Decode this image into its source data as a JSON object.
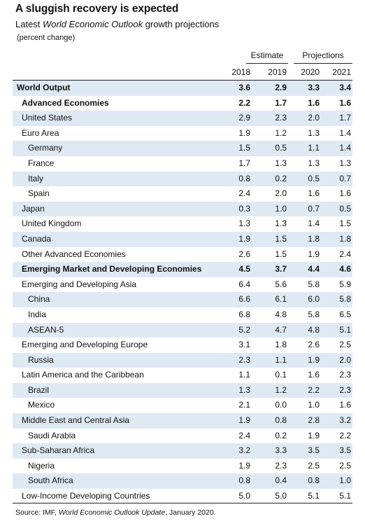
{
  "title": "A sluggish recovery is expected",
  "subtitle_pre": "Latest ",
  "subtitle_em": "World Economic Outlook",
  "subtitle_post": " growth projections",
  "unit": "(percent change)",
  "header_groups": {
    "estimate": "Estimate",
    "projections": "Projections"
  },
  "years": [
    "2018",
    "2019",
    "2020",
    "2021"
  ],
  "rows": [
    {
      "label": "World Output",
      "level": 0,
      "bold": true,
      "shade": true,
      "values": [
        "3.6",
        "2.9",
        "3.3",
        "3.4"
      ]
    },
    {
      "label": "Advanced Economies",
      "level": 1,
      "bold": true,
      "shade": false,
      "values": [
        "2.2",
        "1.7",
        "1.6",
        "1.6"
      ]
    },
    {
      "label": "United States",
      "level": 1,
      "bold": false,
      "shade": true,
      "values": [
        "2.9",
        "2.3",
        "2.0",
        "1.7"
      ]
    },
    {
      "label": "Euro Area",
      "level": 1,
      "bold": false,
      "shade": false,
      "values": [
        "1.9",
        "1.2",
        "1.3",
        "1.4"
      ]
    },
    {
      "label": "Germany",
      "level": 2,
      "bold": false,
      "shade": true,
      "values": [
        "1.5",
        "0.5",
        "1.1",
        "1.4"
      ]
    },
    {
      "label": "France",
      "level": 2,
      "bold": false,
      "shade": false,
      "values": [
        "1.7",
        "1.3",
        "1.3",
        "1.3"
      ]
    },
    {
      "label": "Italy",
      "level": 2,
      "bold": false,
      "shade": true,
      "values": [
        "0.8",
        "0.2",
        "0.5",
        "0.7"
      ]
    },
    {
      "label": "Spain",
      "level": 2,
      "bold": false,
      "shade": false,
      "values": [
        "2.4",
        "2.0",
        "1.6",
        "1.6"
      ]
    },
    {
      "label": "Japan",
      "level": 1,
      "bold": false,
      "shade": true,
      "values": [
        "0.3",
        "1.0",
        "0.7",
        "0.5"
      ]
    },
    {
      "label": "United Kingdom",
      "level": 1,
      "bold": false,
      "shade": false,
      "values": [
        "1.3",
        "1.3",
        "1.4",
        "1.5"
      ]
    },
    {
      "label": "Canada",
      "level": 1,
      "bold": false,
      "shade": true,
      "values": [
        "1.9",
        "1.5",
        "1.8",
        "1.8"
      ]
    },
    {
      "label": "Other Advanced Economies",
      "level": 1,
      "bold": false,
      "shade": false,
      "values": [
        "2.6",
        "1.5",
        "1.9",
        "2.4"
      ]
    },
    {
      "label": "Emerging Market and Developing Economies",
      "level": 1,
      "bold": true,
      "shade": true,
      "values": [
        "4.5",
        "3.7",
        "4.4",
        "4.6"
      ]
    },
    {
      "label": "Emerging and Developing Asia",
      "level": 1,
      "bold": false,
      "shade": false,
      "values": [
        "6.4",
        "5.6",
        "5.8",
        "5.9"
      ]
    },
    {
      "label": "China",
      "level": 2,
      "bold": false,
      "shade": true,
      "values": [
        "6.6",
        "6.1",
        "6.0",
        "5.8"
      ]
    },
    {
      "label": "India",
      "level": 2,
      "bold": false,
      "shade": false,
      "values": [
        "6.8",
        "4.8",
        "5.8",
        "6.5"
      ]
    },
    {
      "label": "ASEAN-5",
      "level": 2,
      "bold": false,
      "shade": true,
      "values": [
        "5.2",
        "4.7",
        "4.8",
        "5.1"
      ]
    },
    {
      "label": "Emerging and Developing Europe",
      "level": 1,
      "bold": false,
      "shade": false,
      "values": [
        "3.1",
        "1.8",
        "2.6",
        "2.5"
      ]
    },
    {
      "label": "Russia",
      "level": 2,
      "bold": false,
      "shade": true,
      "values": [
        "2.3",
        "1.1",
        "1.9",
        "2.0"
      ]
    },
    {
      "label": "Latin America and the Caribbean",
      "level": 1,
      "bold": false,
      "shade": false,
      "values": [
        "1.1",
        "0.1",
        "1.6",
        "2.3"
      ]
    },
    {
      "label": "Brazil",
      "level": 2,
      "bold": false,
      "shade": true,
      "values": [
        "1.3",
        "1.2",
        "2.2",
        "2.3"
      ]
    },
    {
      "label": "Mexico",
      "level": 2,
      "bold": false,
      "shade": false,
      "values": [
        "2.1",
        "0.0",
        "1.0",
        "1.6"
      ]
    },
    {
      "label": "Middle East and Central Asia",
      "level": 1,
      "bold": false,
      "shade": true,
      "values": [
        "1.9",
        "0.8",
        "2.8",
        "3.2"
      ]
    },
    {
      "label": "Saudi Arabia",
      "level": 2,
      "bold": false,
      "shade": false,
      "values": [
        "2.4",
        "0.2",
        "1.9",
        "2.2"
      ]
    },
    {
      "label": "Sub-Saharan Africa",
      "level": 1,
      "bold": false,
      "shade": true,
      "values": [
        "3.2",
        "3.3",
        "3.5",
        "3.5"
      ]
    },
    {
      "label": "Nigeria",
      "level": 2,
      "bold": false,
      "shade": false,
      "values": [
        "1.9",
        "2.3",
        "2.5",
        "2.5"
      ]
    },
    {
      "label": "South Africa",
      "level": 2,
      "bold": false,
      "shade": true,
      "values": [
        "0.8",
        "0.4",
        "0.8",
        "1.0"
      ]
    },
    {
      "label": "Low-Income Developing Countries",
      "level": 1,
      "bold": false,
      "shade": false,
      "values": [
        "5.0",
        "5.0",
        "5.1",
        "5.1"
      ]
    }
  ],
  "source_pre": "Source: IMF, ",
  "source_em": "World Economic Outlook Update",
  "source_post": ", January 2020.",
  "colors": {
    "row_shade": "#dfe9f4",
    "rule": "#222222"
  }
}
